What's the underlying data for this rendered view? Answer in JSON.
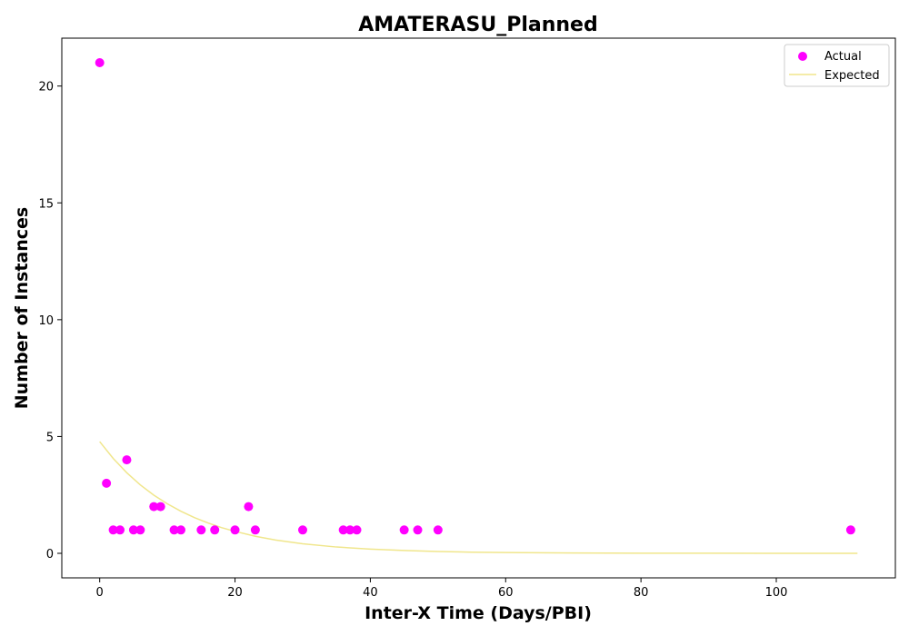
{
  "chart_data": {
    "type": "scatter",
    "title": "AMATERASU_Planned",
    "xlabel": "Inter-X Time (Days/PBI)",
    "ylabel": "Number of Instances",
    "xlim": [
      -5.6,
      117.6
    ],
    "ylim": [
      -1.05,
      22.05
    ],
    "x_ticks": [
      0,
      20,
      40,
      60,
      80,
      100
    ],
    "y_ticks": [
      0,
      5,
      10,
      15,
      20
    ],
    "grid": false,
    "legend": "top-right",
    "series": [
      {
        "name": "Actual",
        "kind": "scatter",
        "color": "#ff00ff",
        "points": [
          [
            0,
            21
          ],
          [
            1,
            3
          ],
          [
            2,
            1
          ],
          [
            3,
            1
          ],
          [
            4,
            4
          ],
          [
            5,
            1
          ],
          [
            6,
            1
          ],
          [
            8,
            2
          ],
          [
            9,
            2
          ],
          [
            11,
            1
          ],
          [
            12,
            1
          ],
          [
            15,
            1
          ],
          [
            17,
            1
          ],
          [
            20,
            1
          ],
          [
            22,
            2
          ],
          [
            23,
            1
          ],
          [
            30,
            1
          ],
          [
            36,
            1
          ],
          [
            37,
            1
          ],
          [
            38,
            1
          ],
          [
            45,
            1
          ],
          [
            47,
            1
          ],
          [
            50,
            1
          ],
          [
            111,
            1
          ]
        ]
      },
      {
        "name": "Expected",
        "kind": "line",
        "color": "#f0e68c",
        "points": [
          [
            0,
            4.78
          ],
          [
            2,
            4.06
          ],
          [
            4,
            3.45
          ],
          [
            6,
            2.93
          ],
          [
            8,
            2.49
          ],
          [
            10,
            2.12
          ],
          [
            12,
            1.8
          ],
          [
            14,
            1.53
          ],
          [
            16,
            1.3
          ],
          [
            18,
            1.1
          ],
          [
            20,
            0.94
          ],
          [
            23,
            0.73
          ],
          [
            26,
            0.57
          ],
          [
            30,
            0.41
          ],
          [
            35,
            0.27
          ],
          [
            40,
            0.18
          ],
          [
            45,
            0.12
          ],
          [
            50,
            0.08
          ],
          [
            55,
            0.05
          ],
          [
            60,
            0.035
          ],
          [
            70,
            0.015
          ],
          [
            80,
            0.007
          ],
          [
            90,
            0.003
          ],
          [
            100,
            0.001
          ],
          [
            112,
            0.0005
          ]
        ]
      }
    ]
  }
}
